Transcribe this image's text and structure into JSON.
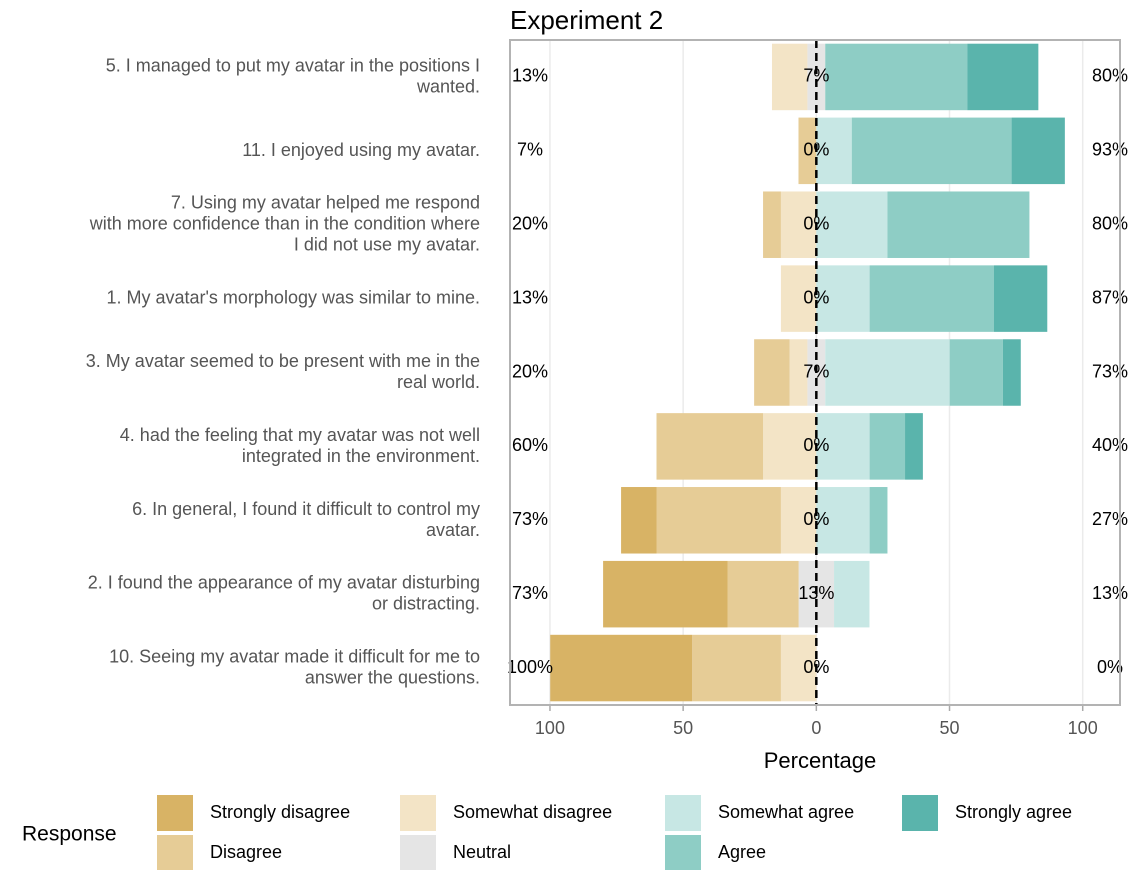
{
  "chart_data": {
    "type": "diverging_bar",
    "title": "Experiment 2",
    "x_label": "Percentage",
    "legend_title": "Response",
    "categories": [
      [
        "5. I managed to put my avatar in the positions I",
        "wanted."
      ],
      [
        "11. I enjoyed using my avatar."
      ],
      [
        "7. Using my avatar helped me respond",
        "with more confidence than in the condition where",
        "I did not use my avatar."
      ],
      [
        "1. My avatar's morphology was similar to mine."
      ],
      [
        "3. My avatar seemed to be present with me in the",
        "real world."
      ],
      [
        "4. had the feeling that my avatar was not well",
        "integrated in the environment."
      ],
      [
        "6. In general, I found it difficult to control my",
        "avatar."
      ],
      [
        "2. I found the appearance of my avatar disturbing",
        "or distracting."
      ],
      [
        "10. Seeing my avatar made it difficult for me to",
        "answer the questions."
      ]
    ],
    "series": [
      {
        "name": "Strongly disagree",
        "side": "left",
        "color": "#d8b365",
        "values": [
          0,
          0,
          0,
          0,
          0,
          0,
          13.3,
          46.7,
          53.3
        ]
      },
      {
        "name": "Disagree",
        "side": "left",
        "color": "#e6cc96",
        "values": [
          0,
          6.7,
          6.7,
          0,
          13.3,
          40,
          46.7,
          26.7,
          33.3
        ]
      },
      {
        "name": "Somewhat disagree",
        "side": "left",
        "color": "#f3e4c6",
        "values": [
          13.3,
          0,
          13.3,
          13.3,
          6.7,
          20,
          13.3,
          0,
          13.3
        ]
      },
      {
        "name": "Neutral",
        "side": "center",
        "color": "#e5e5e5",
        "values": [
          6.7,
          0,
          0,
          0,
          6.7,
          0,
          0,
          13.3,
          0
        ]
      },
      {
        "name": "Somewhat agree",
        "side": "right",
        "color": "#c7e7e4",
        "values": [
          0,
          13.3,
          26.7,
          20,
          46.7,
          20,
          20,
          13.3,
          0
        ]
      },
      {
        "name": "Agree",
        "side": "right",
        "color": "#8ecdc5",
        "values": [
          53.3,
          60,
          53.3,
          46.7,
          20,
          13.3,
          6.7,
          0,
          0
        ]
      },
      {
        "name": "Strongly agree",
        "side": "right",
        "color": "#5ab4ac",
        "values": [
          26.7,
          20,
          0,
          20,
          6.7,
          6.7,
          0,
          0,
          0
        ]
      }
    ],
    "left_labels": [
      "13%",
      "7%",
      "20%",
      "13%",
      "20%",
      "60%",
      "73%",
      "73%",
      "100%"
    ],
    "neutral_labels": [
      "7%",
      "0%",
      "0%",
      "0%",
      "7%",
      "0%",
      "0%",
      "13%",
      "0%"
    ],
    "right_labels": [
      "80%",
      "93%",
      "80%",
      "87%",
      "73%",
      "40%",
      "27%",
      "13%",
      "0%"
    ],
    "xlim": [
      -115,
      114
    ],
    "xticks": [
      {
        "value": -100,
        "label": "100"
      },
      {
        "value": -50,
        "label": "50"
      },
      0,
      50,
      100
    ],
    "grid": true
  }
}
